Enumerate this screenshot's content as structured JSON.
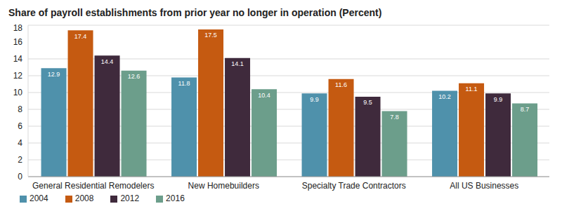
{
  "chart_data": {
    "type": "bar",
    "title": "Share of payroll establishments from prior year no longer in operation (Percent)",
    "categories": [
      "General Residential Remodelers",
      "New Homebuilders",
      "Specialty Trade Contractors",
      "All US Businesses"
    ],
    "series": [
      {
        "name": "2004",
        "color": "#4f91ab",
        "values": [
          12.9,
          11.8,
          9.9,
          10.2
        ]
      },
      {
        "name": "2008",
        "color": "#c55a11",
        "values": [
          17.4,
          17.5,
          11.6,
          11.1
        ]
      },
      {
        "name": "2012",
        "color": "#3f2a3c",
        "values": [
          14.4,
          14.1,
          9.5,
          9.9
        ]
      },
      {
        "name": "2016",
        "color": "#6c9e8b",
        "values": [
          12.6,
          10.4,
          7.8,
          8.7
        ]
      }
    ],
    "ylim": [
      0,
      18
    ],
    "yticks": [
      0,
      2,
      4,
      6,
      8,
      10,
      12,
      14,
      16,
      18
    ],
    "grid": true,
    "data_labels": true,
    "legend": "bottom-left"
  }
}
